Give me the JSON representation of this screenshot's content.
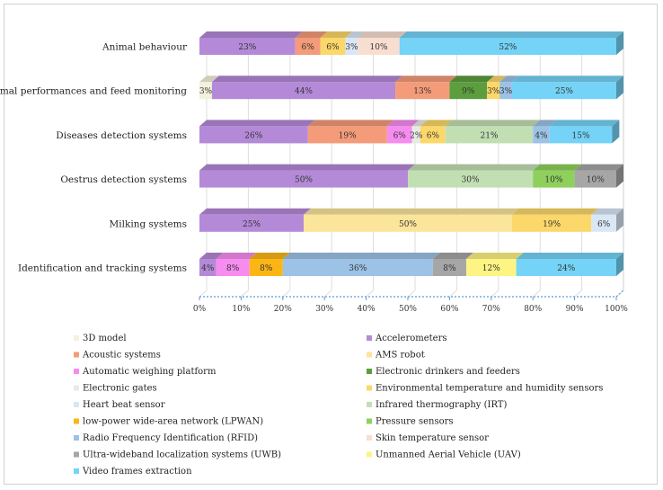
{
  "chart_data": {
    "type": "bar",
    "orientation": "horizontal",
    "stacked": true,
    "percent": true,
    "style": "3d",
    "title": "",
    "xlabel": "",
    "ylabel": "",
    "xlim": [
      0,
      100
    ],
    "x_ticks": [
      "0%",
      "10%",
      "20%",
      "30%",
      "40%",
      "50%",
      "60%",
      "70%",
      "80%",
      "90%",
      "100%"
    ],
    "legend_position": "bottom",
    "categories": [
      "Animal behaviour",
      "Animal performances and feed monitoring",
      "Diseases detection systems",
      "Oestrus detection systems",
      "Milking systems",
      "Identification and tracking systems"
    ],
    "series": [
      {
        "name": "3D model",
        "color": "#f3f0dc",
        "values": [
          0,
          3,
          0,
          0,
          0,
          0
        ],
        "labels": [
          "",
          "3%",
          "",
          "",
          "",
          ""
        ]
      },
      {
        "name": "Accelerometers",
        "color": "#b48ad8",
        "values": [
          23,
          44,
          26,
          50,
          25,
          4
        ],
        "labels": [
          "23%",
          "44%",
          "26%",
          "50%",
          "25%",
          "4%"
        ]
      },
      {
        "name": "Acoustic systems",
        "color": "#f49b7a",
        "values": [
          6,
          13,
          19,
          0,
          0,
          0
        ],
        "labels": [
          "6%",
          "13%",
          "19%",
          "",
          "",
          ""
        ]
      },
      {
        "name": "AMS robot",
        "color": "#fbe59a",
        "values": [
          0,
          0,
          0,
          0,
          50,
          0
        ],
        "labels": [
          "",
          "",
          "",
          "",
          "50%",
          ""
        ]
      },
      {
        "name": "Automatic weighing platform",
        "color": "#f68cf0",
        "values": [
          0,
          0,
          6,
          0,
          0,
          8
        ],
        "labels": [
          "",
          "",
          "6%",
          "",
          "",
          "8%"
        ]
      },
      {
        "name": "Electronic drinkers and feeders",
        "color": "#5c9e3e",
        "values": [
          0,
          9,
          0,
          0,
          0,
          0
        ],
        "labels": [
          "",
          "9%",
          "",
          "",
          "",
          ""
        ]
      },
      {
        "name": "Electronic gates",
        "color": "#e6ebe3",
        "values": [
          0,
          0,
          2,
          0,
          0,
          0
        ],
        "labels": [
          "",
          "",
          "2%",
          "",
          "",
          ""
        ]
      },
      {
        "name": "Environmental temperature and humidity sensors",
        "color": "#fcd769",
        "values": [
          6,
          3,
          6,
          0,
          19,
          0
        ],
        "labels": [
          "6%",
          "3%",
          "6%",
          "",
          "19%",
          ""
        ]
      },
      {
        "name": "Heart beat sensor",
        "color": "#d9e6f5",
        "values": [
          3,
          0,
          0,
          0,
          6,
          0
        ],
        "labels": [
          "3%",
          "",
          "",
          "",
          "6%",
          ""
        ]
      },
      {
        "name": "Infrared thermography (IRT)",
        "color": "#c2dfb4",
        "values": [
          0,
          0,
          21,
          30,
          0,
          0
        ],
        "labels": [
          "",
          "",
          "21%",
          "30%",
          "",
          ""
        ]
      },
      {
        "name": "low-power wide-area network (LPWAN)",
        "color": "#fbb616",
        "values": [
          0,
          0,
          0,
          0,
          0,
          8
        ],
        "labels": [
          "",
          "",
          "",
          "",
          "",
          "8%"
        ]
      },
      {
        "name": "Pressure sensors",
        "color": "#8fd05c",
        "values": [
          0,
          0,
          0,
          10,
          0,
          0
        ],
        "labels": [
          "",
          "",
          "",
          "10%",
          "",
          ""
        ]
      },
      {
        "name": "Radio Frequency Identification (RFID)",
        "color": "#9cc2e5",
        "values": [
          0,
          3,
          4,
          0,
          0,
          36
        ],
        "labels": [
          "",
          "3%",
          "4%",
          "",
          "",
          "36%"
        ]
      },
      {
        "name": "Skin temperature sensor",
        "color": "#f8ded0",
        "values": [
          10,
          0,
          0,
          0,
          0,
          0
        ],
        "labels": [
          "10%",
          "",
          "",
          "",
          "",
          ""
        ]
      },
      {
        "name": "Ultra-wideband localization systems (UWB)",
        "color": "#a6a6a6",
        "values": [
          0,
          0,
          0,
          10,
          0,
          8
        ],
        "labels": [
          "",
          "",
          "",
          "10%",
          "",
          "8%"
        ]
      },
      {
        "name": "Unmanned Aerial Vehicle (UAV)",
        "color": "#fdf483",
        "values": [
          0,
          0,
          0,
          0,
          0,
          12
        ],
        "labels": [
          "",
          "",
          "",
          "",
          "",
          "12%"
        ]
      },
      {
        "name": "Video frames extraction",
        "color": "#74d3f6",
        "values": [
          52,
          25,
          15,
          0,
          0,
          24
        ],
        "labels": [
          "52%",
          "25%",
          "15%",
          "",
          "",
          "24%"
        ]
      }
    ]
  }
}
